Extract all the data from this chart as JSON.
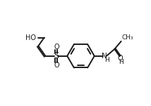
{
  "bg_color": "#ffffff",
  "line_color": "#1a1a1a",
  "line_width": 1.4,
  "font_size": 7.0,
  "fig_width": 2.14,
  "fig_height": 1.51,
  "dpi": 100,
  "xlim": [
    0,
    10
  ],
  "ylim": [
    0,
    7
  ]
}
